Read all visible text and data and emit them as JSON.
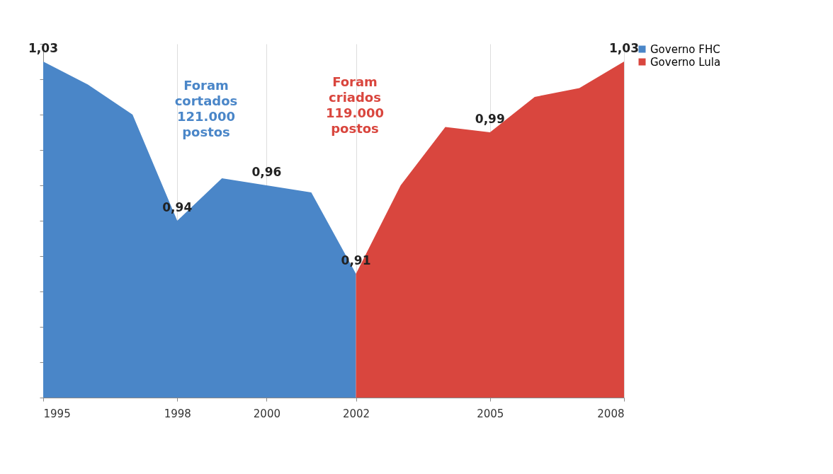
{
  "chart_data": {
    "type": "area",
    "xlim": [
      1995,
      2008
    ],
    "xticks": [
      1995,
      1998,
      2000,
      2002,
      2005,
      2008
    ],
    "ylim": [
      0.84,
      1.04
    ],
    "yticks": [
      {
        "value": 0.84,
        "label": null
      },
      {
        "value": 0.86,
        "label": null
      },
      {
        "value": 0.88,
        "label": null
      },
      {
        "value": 0.9,
        "label": null
      },
      {
        "value": 0.92,
        "label": null
      },
      {
        "value": 0.94,
        "label": null
      },
      {
        "value": 0.96,
        "label": null
      },
      {
        "value": 0.98,
        "label": null
      },
      {
        "value": 1.0,
        "label": null
      },
      {
        "value": 1.02,
        "label": null
      },
      {
        "value": 1.04,
        "label": null
      }
    ],
    "tick_labels": "x",
    "grid": "x",
    "legend": "right",
    "series": [
      {
        "name": "Governo FHC",
        "color": "#4a86c8",
        "x": [
          1995,
          1996,
          1997,
          1998,
          1999,
          2000,
          2001,
          2002
        ],
        "values": [
          1.03,
          1.017,
          1.0,
          0.94,
          0.964,
          0.96,
          0.956,
          0.91
        ],
        "value_labels": [
          "1,03",
          null,
          null,
          "0,94",
          null,
          "0,96",
          null,
          null
        ]
      },
      {
        "name": "Governo Lula",
        "color": "#d9463e",
        "x": [
          2002,
          2003,
          2004,
          2005,
          2006,
          2007,
          2008
        ],
        "values": [
          0.91,
          0.96,
          0.993,
          0.99,
          1.01,
          1.015,
          1.03
        ],
        "value_labels": [
          "0,91",
          null,
          null,
          "0,99",
          null,
          null,
          "1,03"
        ]
      }
    ],
    "annotations": [
      "Foram\ncortados\n121.000\npostos",
      "Foram\ncriados\n119.000\npostos"
    ]
  }
}
